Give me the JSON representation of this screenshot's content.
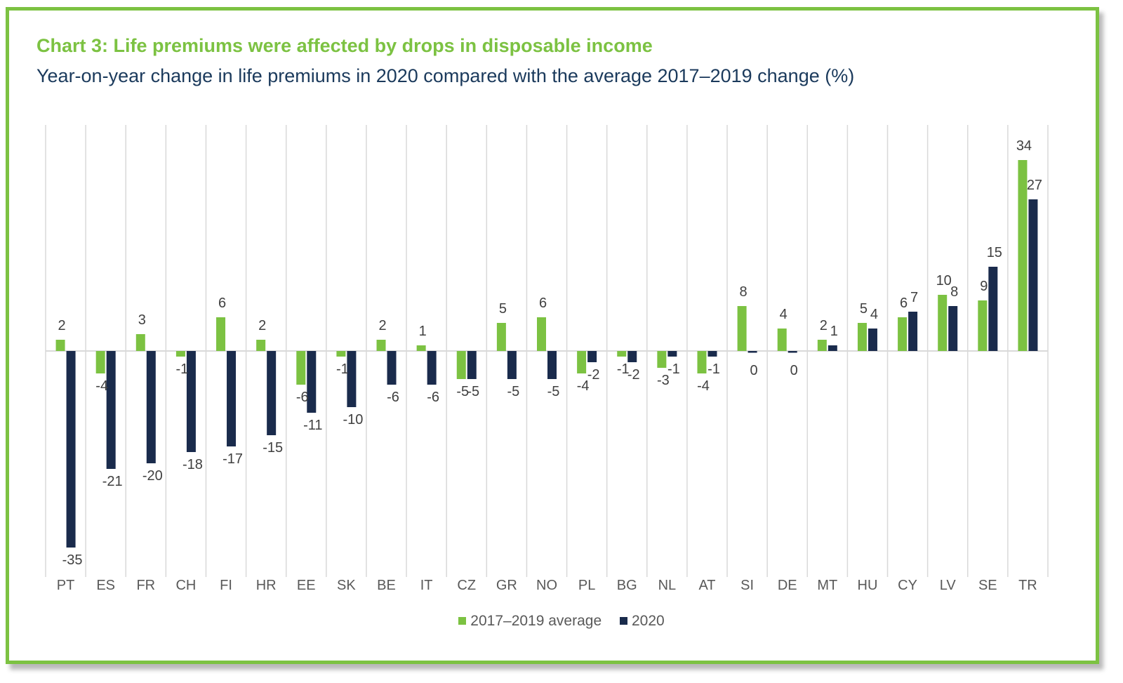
{
  "title": "Chart 3: Life premiums were affected by drops in disposable income",
  "subtitle": "Year-on-year change in life premiums in 2020 compared with the average 2017–2019 change (%)",
  "colors": {
    "border": "#7cc242",
    "series_a": "#7cc242",
    "series_b": "#1a2b4c",
    "grid": "#d9d9d9",
    "axis": "#d9d9d9"
  },
  "chart_data": {
    "type": "bar",
    "categories": [
      "PT",
      "ES",
      "FR",
      "CH",
      "FI",
      "HR",
      "EE",
      "SK",
      "BE",
      "IT",
      "CZ",
      "GR",
      "NO",
      "PL",
      "BG",
      "NL",
      "AT",
      "SI",
      "DE",
      "MT",
      "HU",
      "CY",
      "LV",
      "SE",
      "TR"
    ],
    "series": [
      {
        "name": "2017–2019 average",
        "values": [
          2,
          -4,
          3,
          -1,
          6,
          2,
          -6,
          -1,
          2,
          1,
          -5,
          5,
          6,
          -4,
          -1,
          -3,
          -4,
          8,
          4,
          2,
          5,
          6,
          10,
          9,
          34
        ]
      },
      {
        "name": "2020",
        "values": [
          -35,
          -21,
          -20,
          -18,
          -17,
          -15,
          -11,
          -10,
          -6,
          -6,
          -5,
          -5,
          -5,
          -2,
          -2,
          -1,
          -1,
          0,
          0,
          1,
          4,
          7,
          8,
          15,
          27
        ]
      }
    ],
    "ylim": [
      -40,
      40
    ],
    "grid": "vertical",
    "legend": "bottom"
  }
}
